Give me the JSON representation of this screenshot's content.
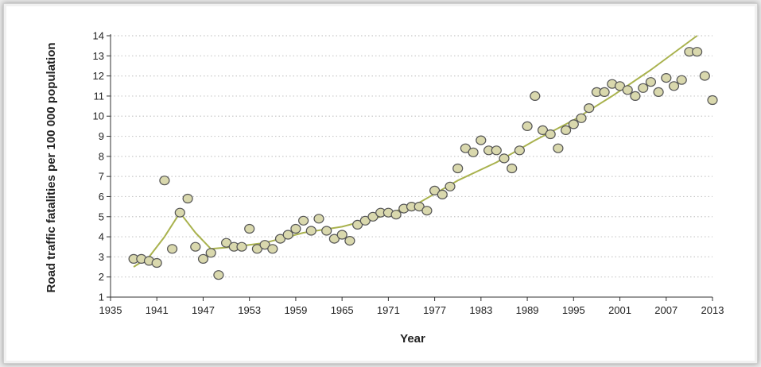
{
  "colors": {
    "point_fill": "#d9d8ad",
    "point_stroke": "#555555",
    "trend": "#a9b24e",
    "grid": "#c8c8c8",
    "axis": "#333333"
  },
  "chart_data": {
    "type": "scatter",
    "xlabel": "Year",
    "ylabel": "Road traffic fatalities per 100 000 population",
    "xlim": [
      1935,
      2013
    ],
    "ylim": [
      1,
      14
    ],
    "x_ticks": [
      1935,
      1941,
      1947,
      1953,
      1959,
      1965,
      1971,
      1977,
      1983,
      1989,
      1995,
      2001,
      2007,
      2013
    ],
    "y_ticks": [
      1,
      2,
      3,
      4,
      5,
      6,
      7,
      8,
      9,
      10,
      11,
      12,
      13,
      14
    ],
    "grid": "horizontal dotted",
    "series": [
      {
        "points": [
          [
            1938,
            2.9
          ],
          [
            1939,
            2.9
          ],
          [
            1940,
            2.8
          ],
          [
            1941,
            2.7
          ],
          [
            1942,
            6.8
          ],
          [
            1943,
            3.4
          ],
          [
            1944,
            5.2
          ],
          [
            1945,
            5.9
          ],
          [
            1946,
            3.5
          ],
          [
            1947,
            2.9
          ],
          [
            1948,
            3.2
          ],
          [
            1949,
            2.1
          ],
          [
            1950,
            3.7
          ],
          [
            1951,
            3.5
          ],
          [
            1952,
            3.5
          ],
          [
            1953,
            4.4
          ],
          [
            1954,
            3.4
          ],
          [
            1955,
            3.6
          ],
          [
            1956,
            3.4
          ],
          [
            1957,
            3.9
          ],
          [
            1958,
            4.1
          ],
          [
            1959,
            4.4
          ],
          [
            1960,
            4.8
          ],
          [
            1961,
            4.3
          ],
          [
            1962,
            4.9
          ],
          [
            1963,
            4.3
          ],
          [
            1964,
            3.9
          ],
          [
            1965,
            4.1
          ],
          [
            1966,
            3.8
          ],
          [
            1967,
            4.6
          ],
          [
            1968,
            4.8
          ],
          [
            1969,
            5.0
          ],
          [
            1970,
            5.2
          ],
          [
            1971,
            5.2
          ],
          [
            1972,
            5.1
          ],
          [
            1973,
            5.4
          ],
          [
            1974,
            5.5
          ],
          [
            1975,
            5.5
          ],
          [
            1976,
            5.3
          ],
          [
            1977,
            6.3
          ],
          [
            1978,
            6.1
          ],
          [
            1979,
            6.5
          ],
          [
            1980,
            7.4
          ],
          [
            1981,
            8.4
          ],
          [
            1982,
            8.2
          ],
          [
            1983,
            8.8
          ],
          [
            1984,
            8.3
          ],
          [
            1985,
            8.3
          ],
          [
            1986,
            7.9
          ],
          [
            1987,
            7.4
          ],
          [
            1988,
            8.3
          ],
          [
            1989,
            9.5
          ],
          [
            1990,
            11.0
          ],
          [
            1991,
            9.3
          ],
          [
            1992,
            9.1
          ],
          [
            1993,
            8.4
          ],
          [
            1994,
            9.3
          ],
          [
            1995,
            9.6
          ],
          [
            1996,
            9.9
          ],
          [
            1997,
            10.4
          ],
          [
            1998,
            11.2
          ],
          [
            1999,
            11.2
          ],
          [
            2000,
            11.6
          ],
          [
            2001,
            11.5
          ],
          [
            2002,
            11.3
          ],
          [
            2003,
            11.0
          ],
          [
            2004,
            11.4
          ],
          [
            2005,
            11.7
          ],
          [
            2006,
            11.2
          ],
          [
            2007,
            11.9
          ],
          [
            2008,
            11.5
          ],
          [
            2009,
            11.8
          ],
          [
            2010,
            13.2
          ],
          [
            2011,
            13.2
          ],
          [
            2012,
            12.0
          ],
          [
            2013,
            10.8
          ]
        ]
      }
    ],
    "trend_line": [
      [
        1938,
        2.5
      ],
      [
        1940,
        3.0
      ],
      [
        1942,
        4.0
      ],
      [
        1944,
        5.2
      ],
      [
        1946,
        4.2
      ],
      [
        1948,
        3.4
      ],
      [
        1951,
        3.5
      ],
      [
        1955,
        3.7
      ],
      [
        1960,
        4.2
      ],
      [
        1965,
        4.5
      ],
      [
        1970,
        5.0
      ],
      [
        1975,
        5.7
      ],
      [
        1980,
        6.8
      ],
      [
        1985,
        7.7
      ],
      [
        1990,
        8.8
      ],
      [
        1995,
        9.8
      ],
      [
        2000,
        11.0
      ],
      [
        2005,
        12.3
      ],
      [
        2011,
        14.0
      ]
    ]
  }
}
